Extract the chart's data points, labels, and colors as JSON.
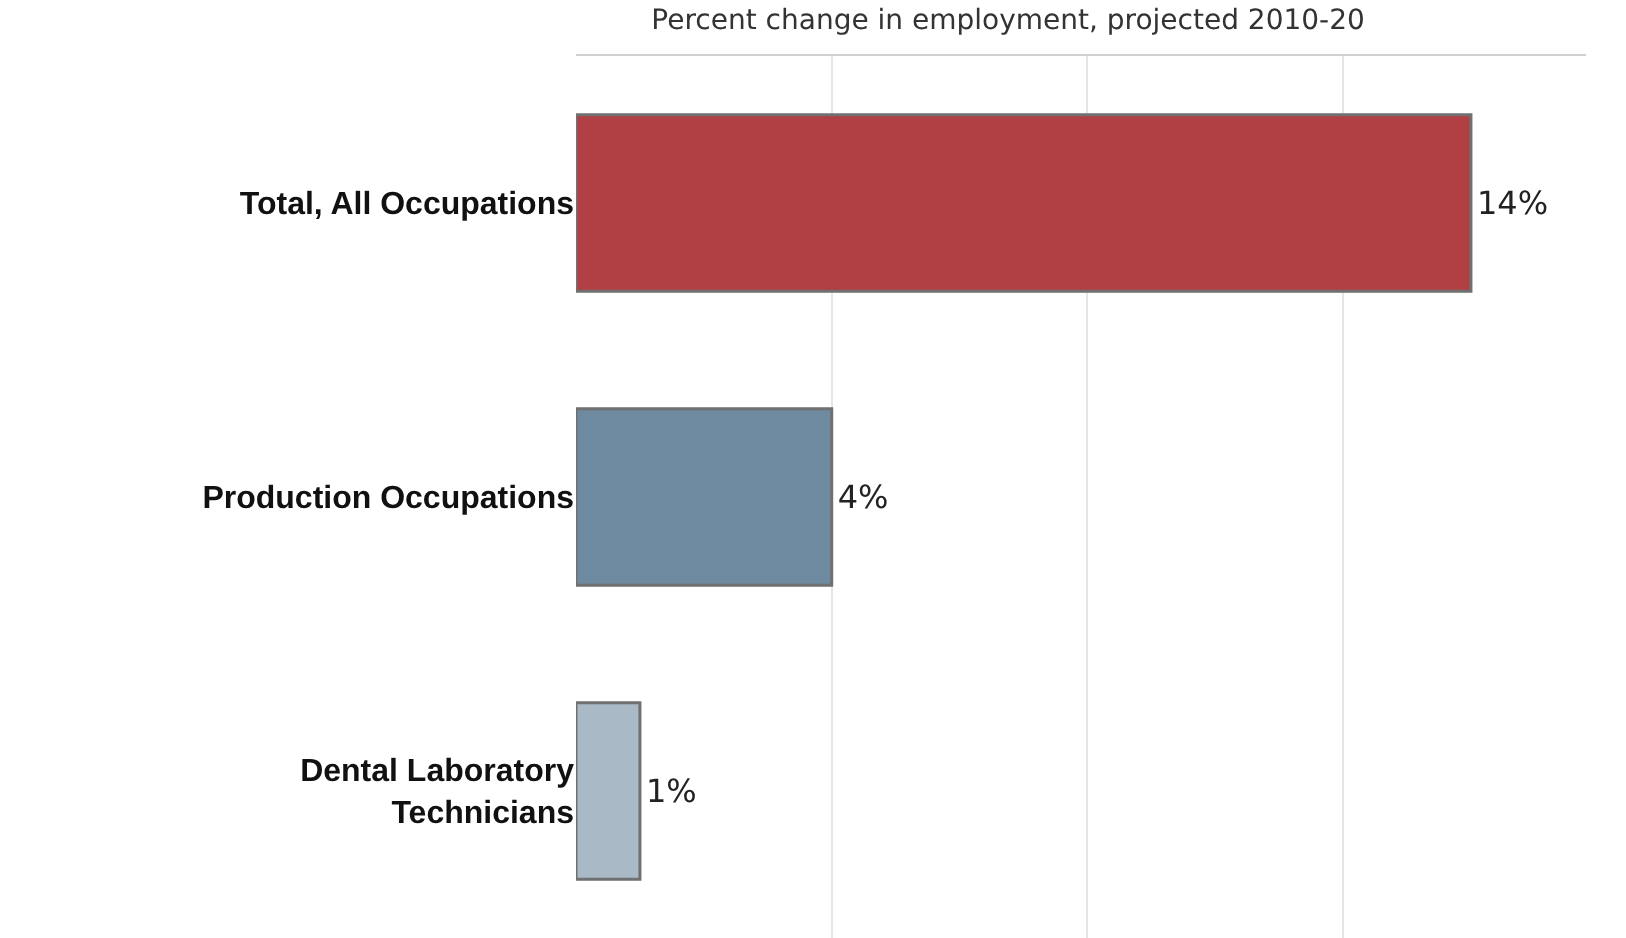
{
  "chart_data": {
    "type": "bar",
    "orientation": "horizontal",
    "title": "Percent change in employment, projected 2010-20",
    "categories": [
      "Total, All Occupations",
      "Production Occupations",
      "Dental Laboratory Technicians"
    ],
    "values": [
      14,
      4,
      1
    ],
    "colors": [
      "#b04044",
      "#6e8aa0",
      "#a9bac6"
    ],
    "value_labels": [
      "14%",
      "4%",
      "1%"
    ],
    "xlim": [
      0,
      15.8
    ],
    "xticks": [
      {
        "value": 4,
        "label": null
      },
      {
        "value": 8,
        "label": null
      },
      {
        "value": 12,
        "label": null
      }
    ],
    "grid": "x",
    "tick_labels": "y",
    "legend": false
  }
}
